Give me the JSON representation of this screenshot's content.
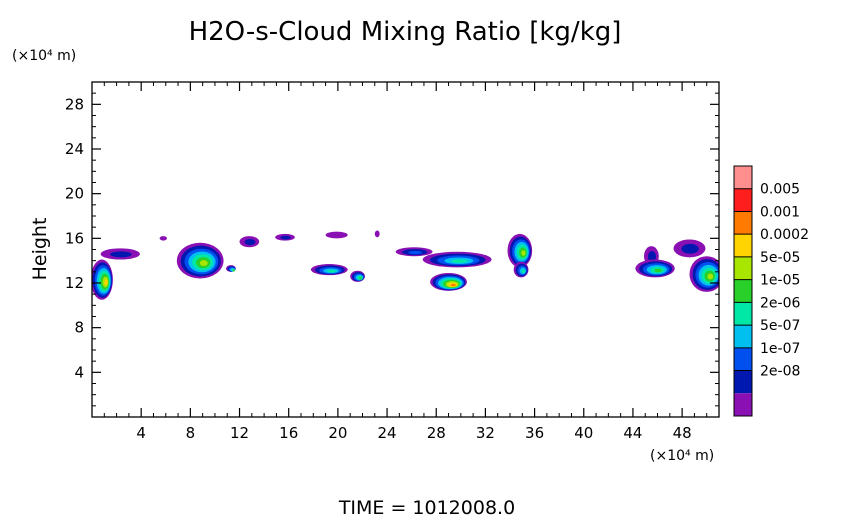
{
  "chart_data": {
    "type": "heatmap",
    "title": "H2O-s-Cloud Mixing Ratio [kg/kg]",
    "xlabel": "",
    "ylabel": "Height",
    "x_unit_label": "(×10⁴ m)",
    "y_unit_label": "(×10⁴ m)",
    "xlim": [
      0,
      51
    ],
    "ylim": [
      0,
      30
    ],
    "x_ticks": [
      4,
      8,
      12,
      16,
      20,
      24,
      28,
      32,
      36,
      40,
      44,
      48
    ],
    "y_ticks": [
      4,
      8,
      12,
      16,
      20,
      24,
      28
    ],
    "x_tick_labels": [
      "4",
      "8",
      "12",
      "16",
      "20",
      "24",
      "28",
      "32",
      "36",
      "40",
      "44",
      "48"
    ],
    "y_tick_labels": [
      "4",
      "8",
      "12",
      "16",
      "20",
      "24",
      "28"
    ],
    "colorbar": {
      "labels": [
        "0.005",
        "0.001",
        "0.0002",
        "5e-05",
        "1e-05",
        "2e-06",
        "5e-07",
        "1e-07",
        "2e-08"
      ],
      "colors": [
        "#ff8f8f",
        "#ff1e1e",
        "#ff7a00",
        "#ffd400",
        "#a8e600",
        "#2ad02a",
        "#00e8a6",
        "#00c0f0",
        "#0050f0",
        "#0018b0",
        "#8a10b4"
      ]
    },
    "clouds": [
      {
        "x": 0.8,
        "y": 12.3,
        "rx": 0.9,
        "ry": 1.8,
        "level": 3
      },
      {
        "x": 2.3,
        "y": 14.6,
        "rx": 1.6,
        "ry": 0.5,
        "level": 9
      },
      {
        "x": 5.8,
        "y": 16.0,
        "rx": 0.3,
        "ry": 0.2,
        "level": 10
      },
      {
        "x": 8.8,
        "y": 14.0,
        "rx": 1.9,
        "ry": 1.6,
        "level": 4
      },
      {
        "x": 11.3,
        "y": 13.3,
        "rx": 0.4,
        "ry": 0.3,
        "level": 5
      },
      {
        "x": 12.8,
        "y": 15.7,
        "rx": 0.8,
        "ry": 0.5,
        "level": 9
      },
      {
        "x": 15.7,
        "y": 16.1,
        "rx": 0.8,
        "ry": 0.3,
        "level": 9
      },
      {
        "x": 19.9,
        "y": 16.3,
        "rx": 0.9,
        "ry": 0.3,
        "level": 10
      },
      {
        "x": 19.3,
        "y": 13.2,
        "rx": 1.5,
        "ry": 0.5,
        "level": 6
      },
      {
        "x": 21.6,
        "y": 12.6,
        "rx": 0.6,
        "ry": 0.5,
        "level": 5
      },
      {
        "x": 23.2,
        "y": 16.4,
        "rx": 0.2,
        "ry": 0.3,
        "level": 10
      },
      {
        "x": 26.2,
        "y": 14.8,
        "rx": 1.5,
        "ry": 0.4,
        "level": 8
      },
      {
        "x": 29.7,
        "y": 14.1,
        "rx": 2.8,
        "ry": 0.7,
        "level": 6
      },
      {
        "x": 29.0,
        "y": 12.1,
        "rx": 1.5,
        "ry": 0.8,
        "level": 2
      },
      {
        "x": 34.8,
        "y": 14.9,
        "rx": 1.0,
        "ry": 1.5,
        "level": 4
      },
      {
        "x": 34.9,
        "y": 13.2,
        "rx": 0.6,
        "ry": 0.7,
        "level": 6
      },
      {
        "x": 45.5,
        "y": 14.4,
        "rx": 0.6,
        "ry": 0.9,
        "level": 9
      },
      {
        "x": 45.8,
        "y": 13.3,
        "rx": 1.6,
        "ry": 0.8,
        "level": 5
      },
      {
        "x": 48.6,
        "y": 15.1,
        "rx": 1.3,
        "ry": 0.8,
        "level": 9
      },
      {
        "x": 50.0,
        "y": 12.8,
        "rx": 1.4,
        "ry": 1.6,
        "level": 4
      }
    ]
  },
  "footer": {
    "time_label": "TIME  =  1012008.0"
  }
}
